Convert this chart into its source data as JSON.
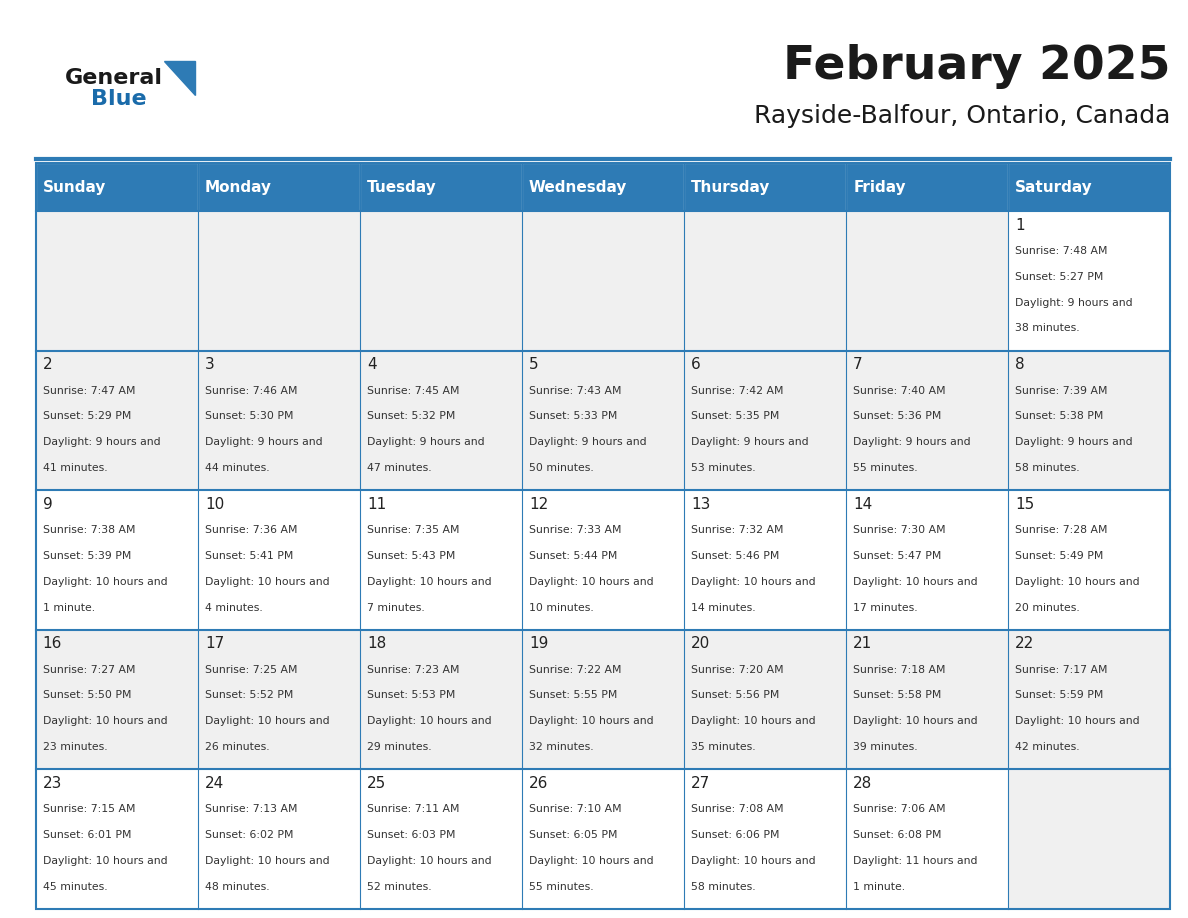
{
  "title": "February 2025",
  "subtitle": "Rayside-Balfour, Ontario, Canada",
  "days_of_week": [
    "Sunday",
    "Monday",
    "Tuesday",
    "Wednesday",
    "Thursday",
    "Friday",
    "Saturday"
  ],
  "header_bg": "#2E7BB5",
  "header_text_color": "#FFFFFF",
  "cell_bg_light": "#FFFFFF",
  "cell_bg_dark": "#F0F0F0",
  "border_color": "#2E7BB5",
  "day_number_color": "#222222",
  "cell_text_color": "#333333",
  "title_color": "#1a1a1a",
  "subtitle_color": "#1a1a1a",
  "generalblue_black": "#1a1a1a",
  "generalblue_blue": "#1A6BAA",
  "logo_triangle_color": "#2E7BB5",
  "weeks": [
    [
      null,
      null,
      null,
      null,
      null,
      null,
      1
    ],
    [
      2,
      3,
      4,
      5,
      6,
      7,
      8
    ],
    [
      9,
      10,
      11,
      12,
      13,
      14,
      15
    ],
    [
      16,
      17,
      18,
      19,
      20,
      21,
      22
    ],
    [
      23,
      24,
      25,
      26,
      27,
      28,
      null
    ]
  ],
  "cell_data": {
    "1": {
      "sunrise": "7:48 AM",
      "sunset": "5:27 PM",
      "daylight": "9 hours and 38 minutes."
    },
    "2": {
      "sunrise": "7:47 AM",
      "sunset": "5:29 PM",
      "daylight": "9 hours and 41 minutes."
    },
    "3": {
      "sunrise": "7:46 AM",
      "sunset": "5:30 PM",
      "daylight": "9 hours and 44 minutes."
    },
    "4": {
      "sunrise": "7:45 AM",
      "sunset": "5:32 PM",
      "daylight": "9 hours and 47 minutes."
    },
    "5": {
      "sunrise": "7:43 AM",
      "sunset": "5:33 PM",
      "daylight": "9 hours and 50 minutes."
    },
    "6": {
      "sunrise": "7:42 AM",
      "sunset": "5:35 PM",
      "daylight": "9 hours and 53 minutes."
    },
    "7": {
      "sunrise": "7:40 AM",
      "sunset": "5:36 PM",
      "daylight": "9 hours and 55 minutes."
    },
    "8": {
      "sunrise": "7:39 AM",
      "sunset": "5:38 PM",
      "daylight": "9 hours and 58 minutes."
    },
    "9": {
      "sunrise": "7:38 AM",
      "sunset": "5:39 PM",
      "daylight": "10 hours and 1 minute."
    },
    "10": {
      "sunrise": "7:36 AM",
      "sunset": "5:41 PM",
      "daylight": "10 hours and 4 minutes."
    },
    "11": {
      "sunrise": "7:35 AM",
      "sunset": "5:43 PM",
      "daylight": "10 hours and 7 minutes."
    },
    "12": {
      "sunrise": "7:33 AM",
      "sunset": "5:44 PM",
      "daylight": "10 hours and 10 minutes."
    },
    "13": {
      "sunrise": "7:32 AM",
      "sunset": "5:46 PM",
      "daylight": "10 hours and 14 minutes."
    },
    "14": {
      "sunrise": "7:30 AM",
      "sunset": "5:47 PM",
      "daylight": "10 hours and 17 minutes."
    },
    "15": {
      "sunrise": "7:28 AM",
      "sunset": "5:49 PM",
      "daylight": "10 hours and 20 minutes."
    },
    "16": {
      "sunrise": "7:27 AM",
      "sunset": "5:50 PM",
      "daylight": "10 hours and 23 minutes."
    },
    "17": {
      "sunrise": "7:25 AM",
      "sunset": "5:52 PM",
      "daylight": "10 hours and 26 minutes."
    },
    "18": {
      "sunrise": "7:23 AM",
      "sunset": "5:53 PM",
      "daylight": "10 hours and 29 minutes."
    },
    "19": {
      "sunrise": "7:22 AM",
      "sunset": "5:55 PM",
      "daylight": "10 hours and 32 minutes."
    },
    "20": {
      "sunrise": "7:20 AM",
      "sunset": "5:56 PM",
      "daylight": "10 hours and 35 minutes."
    },
    "21": {
      "sunrise": "7:18 AM",
      "sunset": "5:58 PM",
      "daylight": "10 hours and 39 minutes."
    },
    "22": {
      "sunrise": "7:17 AM",
      "sunset": "5:59 PM",
      "daylight": "10 hours and 42 minutes."
    },
    "23": {
      "sunrise": "7:15 AM",
      "sunset": "6:01 PM",
      "daylight": "10 hours and 45 minutes."
    },
    "24": {
      "sunrise": "7:13 AM",
      "sunset": "6:02 PM",
      "daylight": "10 hours and 48 minutes."
    },
    "25": {
      "sunrise": "7:11 AM",
      "sunset": "6:03 PM",
      "daylight": "10 hours and 52 minutes."
    },
    "26": {
      "sunrise": "7:10 AM",
      "sunset": "6:05 PM",
      "daylight": "10 hours and 55 minutes."
    },
    "27": {
      "sunrise": "7:08 AM",
      "sunset": "6:06 PM",
      "daylight": "10 hours and 58 minutes."
    },
    "28": {
      "sunrise": "7:06 AM",
      "sunset": "6:08 PM",
      "daylight": "11 hours and 1 minute."
    }
  }
}
